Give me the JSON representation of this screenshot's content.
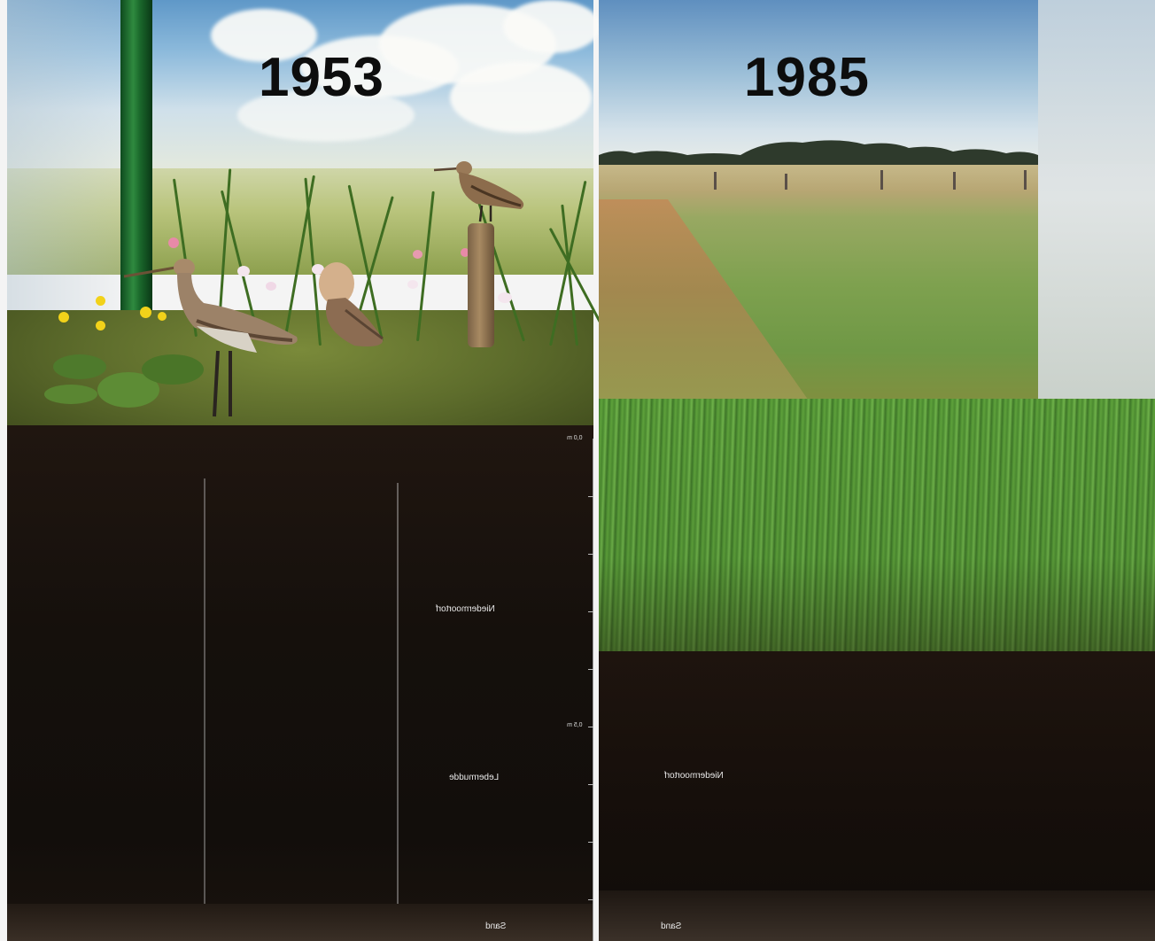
{
  "left_panel": {
    "year": "1953",
    "soil_labels": {
      "upper": "Niedermoortorf",
      "middle": "Lebermudde",
      "bottom": "Sand"
    },
    "depth_marks": {
      "top": "0,0 m",
      "mid": "0,5 m"
    }
  },
  "right_panel": {
    "year": "1985",
    "soil_labels": {
      "middle": "Niedermoortorf",
      "bottom": "Sand"
    }
  },
  "colors": {
    "peat_soil": "#15100c",
    "grass": "#5ea23b",
    "year_text": "#0d0d0d",
    "sky": "#8ebbdc"
  }
}
